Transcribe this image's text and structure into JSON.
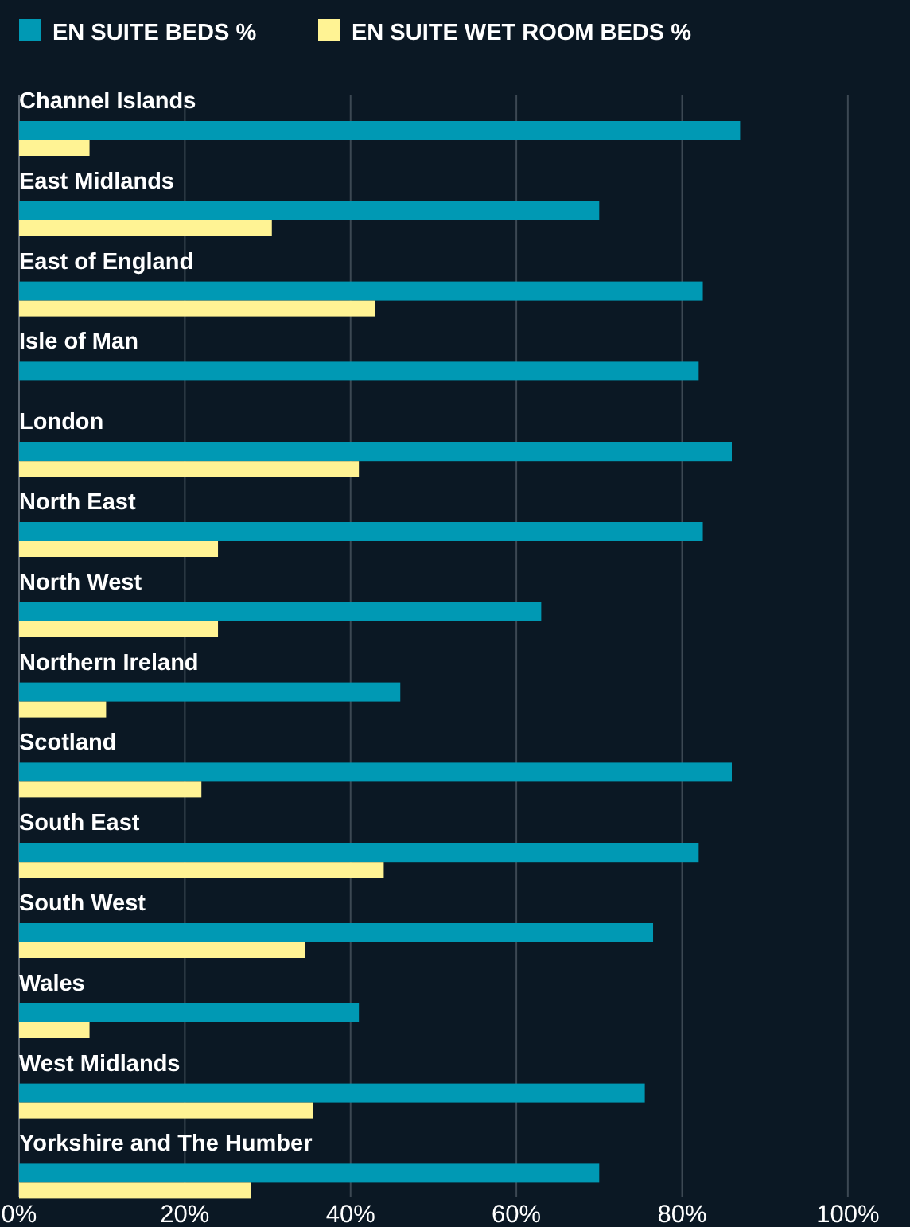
{
  "chart_data": {
    "type": "bar",
    "orientation": "horizontal",
    "categories": [
      "Channel Islands",
      "East Midlands",
      "East of England",
      "Isle of Man",
      "London",
      "North East",
      "North West",
      "Northern Ireland",
      "Scotland",
      "South East",
      "South West",
      "Wales",
      "West Midlands",
      "Yorkshire and The Humber"
    ],
    "series": [
      {
        "name": "EN SUITE BEDS %",
        "color": "#0099b4",
        "values": [
          87,
          70,
          82.5,
          82,
          86,
          82.5,
          63,
          46,
          86,
          82,
          76.5,
          41,
          75.5,
          70
        ]
      },
      {
        "name": "EN SUITE WET ROOM BEDS %",
        "color": "#fff394",
        "values": [
          8.5,
          30.5,
          43,
          null,
          41,
          24,
          24,
          10.5,
          22,
          44,
          34.5,
          8.5,
          35.5,
          28
        ]
      }
    ],
    "xlim": [
      0,
      107.5
    ],
    "xticks": [
      {
        "value": 0,
        "label": "0%"
      },
      {
        "value": 20,
        "label": "20%"
      },
      {
        "value": 40,
        "label": "40%"
      },
      {
        "value": 60,
        "label": "60%"
      },
      {
        "value": 80,
        "label": "80%"
      },
      {
        "value": 100,
        "label": "100%"
      }
    ],
    "grid": "x",
    "legend": "top left"
  }
}
